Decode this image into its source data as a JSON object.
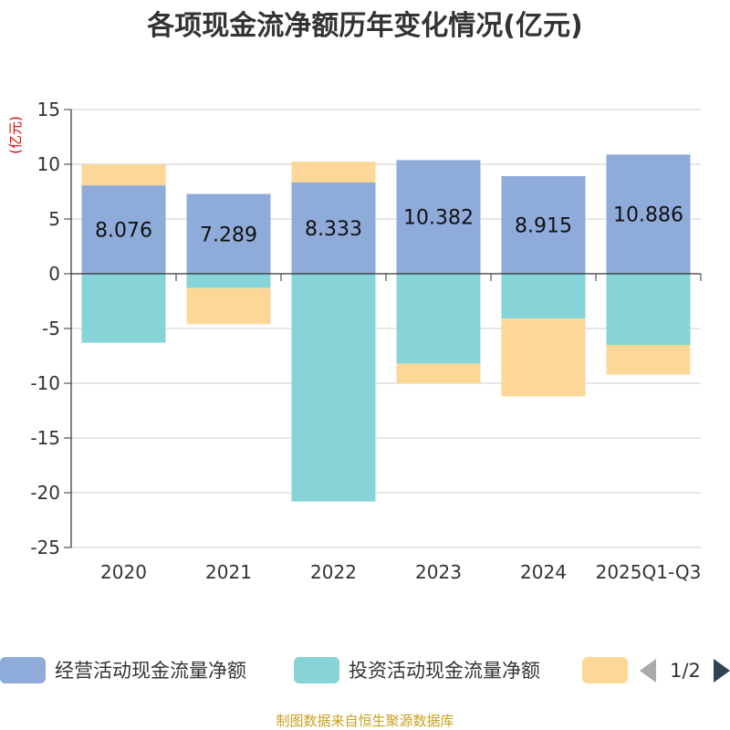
{
  "chart_data": {
    "type": "bar",
    "stacked": true,
    "title": "各项现金流净额历年变化情况(亿元)",
    "ylabel": "(亿元)",
    "xlabel": "",
    "ylim": [
      -25,
      15
    ],
    "yticks": [
      15,
      10,
      5,
      0,
      -5,
      -10,
      -15,
      -20,
      -25
    ],
    "grid": true,
    "categories": [
      "2020",
      "2021",
      "2022",
      "2023",
      "2024",
      "2025Q1-Q3"
    ],
    "series": [
      {
        "name": "经营活动现金流量净额",
        "color": "#8eabd9",
        "values": [
          8.076,
          7.289,
          8.333,
          10.382,
          8.915,
          10.886
        ],
        "show_labels": true
      },
      {
        "name": "投资活动现金流量净额",
        "color": "#86d4d8",
        "values": [
          -6.3,
          -1.3,
          -20.8,
          -8.2,
          -4.1,
          -6.5
        ],
        "show_labels": false
      },
      {
        "name": "",
        "color": "#fdd797",
        "values": [
          1.9,
          -3.3,
          1.9,
          -1.8,
          -7.1,
          -2.7
        ],
        "show_labels": false
      }
    ],
    "legend": {
      "position": "bottom",
      "page": "1/2"
    },
    "source": "制图数据来自恒生聚源数据库"
  }
}
